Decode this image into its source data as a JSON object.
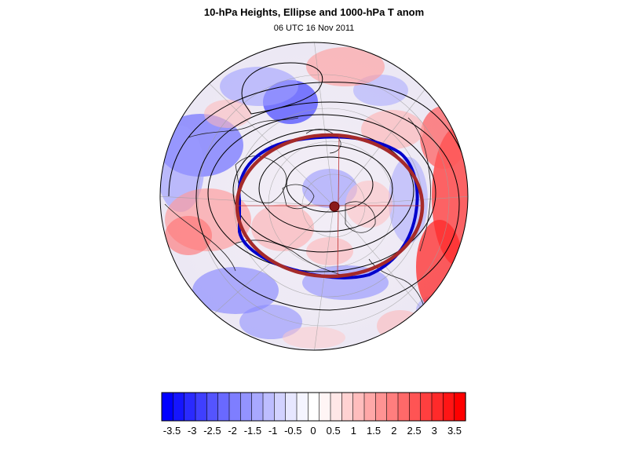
{
  "title": "10-hPa Heights, Ellipse and 1000-hPa T anom",
  "subtitle": "06 UTC 16 Nov 2011",
  "colorbar": {
    "labels": [
      "-3.5",
      "-3",
      "-2.5",
      "-2",
      "-1.5",
      "-1",
      "-0.5",
      "0",
      "0.5",
      "1",
      "1.5",
      "2",
      "2.5",
      "3",
      "3.5"
    ],
    "colors": [
      "#0000ff",
      "#1515ff",
      "#2a2aff",
      "#3f3fff",
      "#5454ff",
      "#6969ff",
      "#7e7eff",
      "#9393ff",
      "#a8a8ff",
      "#bdbdff",
      "#d2d2ff",
      "#e7e7ff",
      "#f5f5ff",
      "#ffffff",
      "#fff5f5",
      "#ffe7e7",
      "#ffd2d2",
      "#ffbdbd",
      "#ffa8a8",
      "#ff9393",
      "#ff7e7e",
      "#ff6969",
      "#ff5454",
      "#ff3f3f",
      "#ff2a2a",
      "#ff1515",
      "#ff0000"
    ]
  },
  "map": {
    "projection": "north polar stereographic",
    "ellipse_color": "#a52a2a",
    "polar_vortex_contour_color": "#0000cc",
    "height_contour_color": "#000000",
    "center_marker_color": "#8b1a1a"
  }
}
